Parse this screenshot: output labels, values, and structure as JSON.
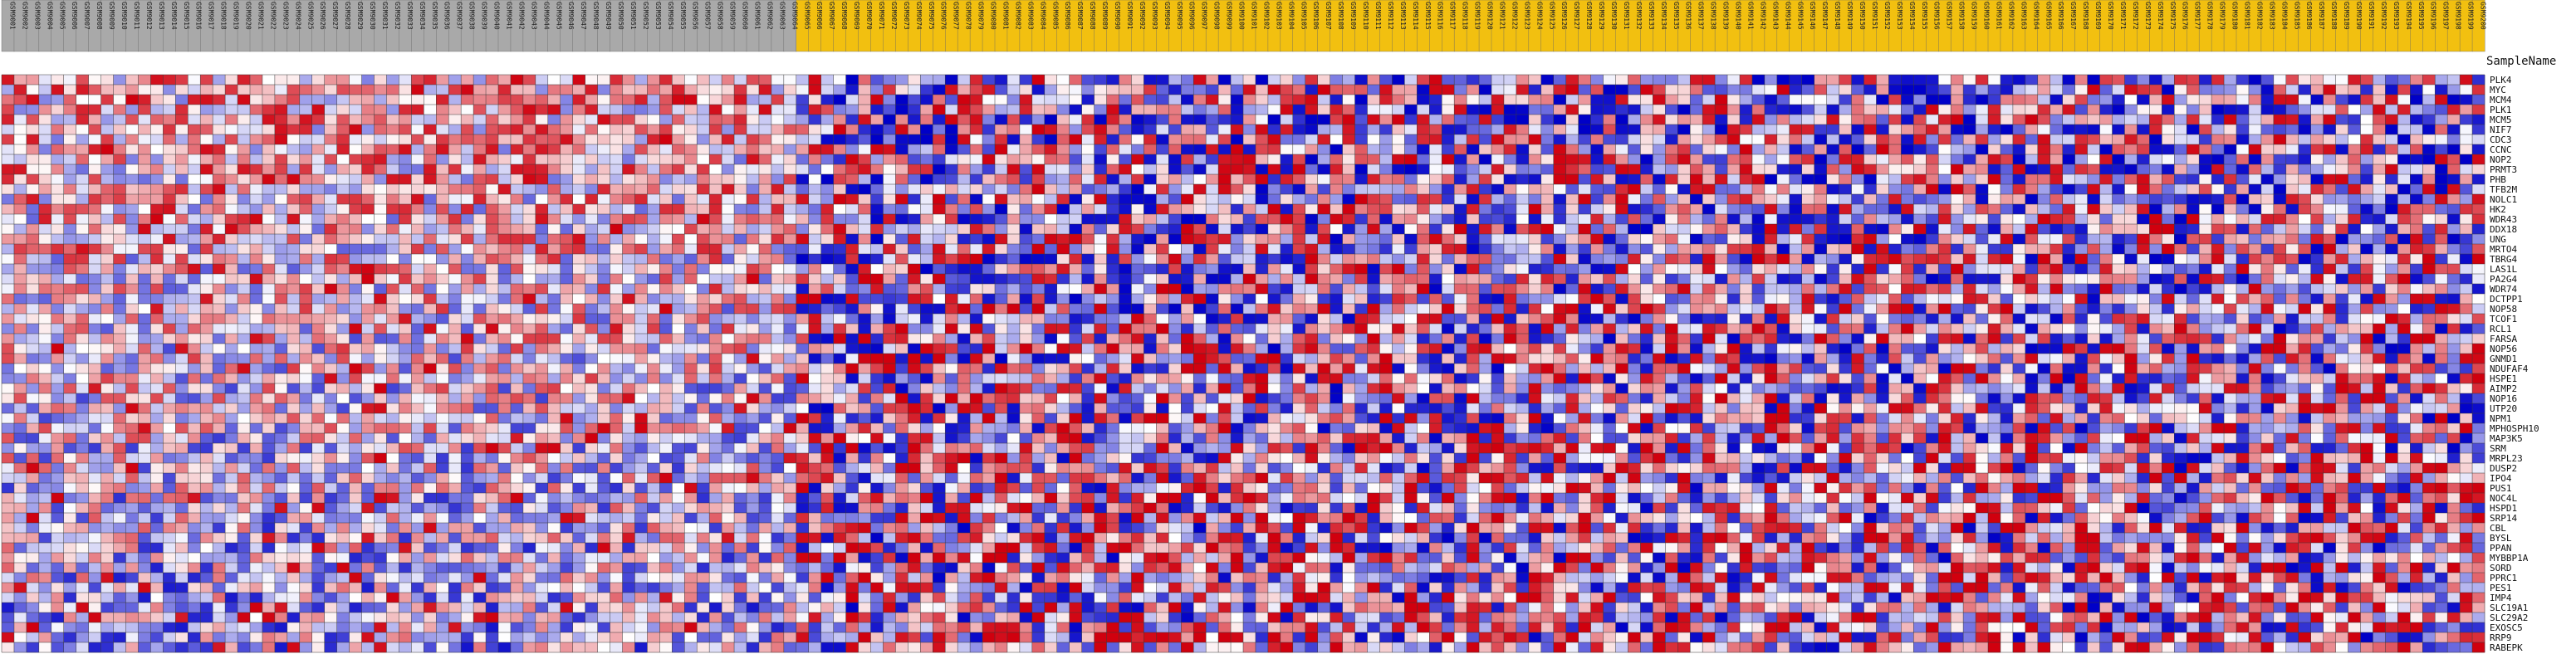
{
  "chart_data": {
    "type": "heatmap",
    "corner_label": "SampleName",
    "class_colors": {
      "class_a": "#a9a9a9",
      "class_b": "#f2c010"
    },
    "color_scale": {
      "low": "#0000c8",
      "mid": "#ffffff",
      "high": "#d0000e"
    },
    "column_count": 200,
    "class_a_count": 64,
    "columns": [
      {
        "name": "GSM9001"
      },
      {
        "name": "GSM9002"
      },
      {
        "name": "GSM9003"
      },
      {
        "name": "GSM9004"
      },
      {
        "name": "GSM9005"
      },
      {
        "name": "GSM9006"
      },
      {
        "name": "GSM9007"
      },
      {
        "name": "GSM9008"
      },
      {
        "name": "GSM9009"
      },
      {
        "name": "GSM9010"
      },
      {
        "name": "GSM9011"
      },
      {
        "name": "GSM9012"
      },
      {
        "name": "GSM9013"
      },
      {
        "name": "GSM9014"
      },
      {
        "name": "GSM9015"
      },
      {
        "name": "GSM9016"
      },
      {
        "name": "GSM9017"
      },
      {
        "name": "GSM9018"
      },
      {
        "name": "GSM9019"
      },
      {
        "name": "GSM9020"
      },
      {
        "name": "GSM9021"
      },
      {
        "name": "GSM9022"
      },
      {
        "name": "GSM9023"
      },
      {
        "name": "GSM9024"
      },
      {
        "name": "GSM9025"
      },
      {
        "name": "GSM9026"
      },
      {
        "name": "GSM9027"
      },
      {
        "name": "GSM9028"
      },
      {
        "name": "GSM9029"
      },
      {
        "name": "GSM9030"
      },
      {
        "name": "GSM9031"
      },
      {
        "name": "GSM9032"
      },
      {
        "name": "GSM9033"
      },
      {
        "name": "GSM9034"
      },
      {
        "name": "GSM9035"
      },
      {
        "name": "GSM9036"
      },
      {
        "name": "GSM9037"
      },
      {
        "name": "GSM9038"
      },
      {
        "name": "GSM9039"
      },
      {
        "name": "GSM9040"
      },
      {
        "name": "GSM9041"
      },
      {
        "name": "GSM9042"
      },
      {
        "name": "GSM9043"
      },
      {
        "name": "GSM9044"
      },
      {
        "name": "GSM9045"
      },
      {
        "name": "GSM9046"
      },
      {
        "name": "GSM9047"
      },
      {
        "name": "GSM9048"
      },
      {
        "name": "GSM9049"
      },
      {
        "name": "GSM9050"
      },
      {
        "name": "GSM9051"
      },
      {
        "name": "GSM9052"
      },
      {
        "name": "GSM9053"
      },
      {
        "name": "GSM9054"
      },
      {
        "name": "GSM9055"
      },
      {
        "name": "GSM9056"
      },
      {
        "name": "GSM9057"
      },
      {
        "name": "GSM9058"
      },
      {
        "name": "GSM9059"
      },
      {
        "name": "GSM9060"
      },
      {
        "name": "GSM9061"
      },
      {
        "name": "GSM9062"
      },
      {
        "name": "GSM9063"
      },
      {
        "name": "GSM9064"
      },
      {
        "name": "GSM9065"
      },
      {
        "name": "GSM9066"
      },
      {
        "name": "GSM9067"
      },
      {
        "name": "GSM9068"
      },
      {
        "name": "GSM9069"
      },
      {
        "name": "GSM9070"
      },
      {
        "name": "GSM9071"
      },
      {
        "name": "GSM9072"
      },
      {
        "name": "GSM9073"
      },
      {
        "name": "GSM9074"
      },
      {
        "name": "GSM9075"
      },
      {
        "name": "GSM9076"
      },
      {
        "name": "GSM9077"
      },
      {
        "name": "GSM9078"
      },
      {
        "name": "GSM9079"
      },
      {
        "name": "GSM9080"
      },
      {
        "name": "GSM9081"
      },
      {
        "name": "GSM9082"
      },
      {
        "name": "GSM9083"
      },
      {
        "name": "GSM9084"
      },
      {
        "name": "GSM9085"
      },
      {
        "name": "GSM9086"
      },
      {
        "name": "GSM9087"
      },
      {
        "name": "GSM9088"
      },
      {
        "name": "GSM9089"
      },
      {
        "name": "GSM9090"
      },
      {
        "name": "GSM9091"
      },
      {
        "name": "GSM9092"
      },
      {
        "name": "GSM9093"
      },
      {
        "name": "GSM9094"
      },
      {
        "name": "GSM9095"
      },
      {
        "name": "GSM9096"
      },
      {
        "name": "GSM9097"
      },
      {
        "name": "GSM9098"
      },
      {
        "name": "GSM9099"
      },
      {
        "name": "GSM9100"
      },
      {
        "name": "GSM9101"
      },
      {
        "name": "GSM9102"
      },
      {
        "name": "GSM9103"
      },
      {
        "name": "GSM9104"
      },
      {
        "name": "GSM9105"
      },
      {
        "name": "GSM9106"
      },
      {
        "name": "GSM9107"
      },
      {
        "name": "GSM9108"
      },
      {
        "name": "GSM9109"
      },
      {
        "name": "GSM9110"
      },
      {
        "name": "GSM9111"
      },
      {
        "name": "GSM9112"
      },
      {
        "name": "GSM9113"
      },
      {
        "name": "GSM9114"
      },
      {
        "name": "GSM9115"
      },
      {
        "name": "GSM9116"
      },
      {
        "name": "GSM9117"
      },
      {
        "name": "GSM9118"
      },
      {
        "name": "GSM9119"
      },
      {
        "name": "GSM9120"
      },
      {
        "name": "GSM9121"
      },
      {
        "name": "GSM9122"
      },
      {
        "name": "GSM9123"
      },
      {
        "name": "GSM9124"
      },
      {
        "name": "GSM9125"
      },
      {
        "name": "GSM9126"
      },
      {
        "name": "GSM9127"
      },
      {
        "name": "GSM9128"
      },
      {
        "name": "GSM9129"
      },
      {
        "name": "GSM9130"
      },
      {
        "name": "GSM9131"
      },
      {
        "name": "GSM9132"
      },
      {
        "name": "GSM9133"
      },
      {
        "name": "GSM9134"
      },
      {
        "name": "GSM9135"
      },
      {
        "name": "GSM9136"
      },
      {
        "name": "GSM9137"
      },
      {
        "name": "GSM9138"
      },
      {
        "name": "GSM9139"
      },
      {
        "name": "GSM9140"
      },
      {
        "name": "GSM9141"
      },
      {
        "name": "GSM9142"
      },
      {
        "name": "GSM9143"
      },
      {
        "name": "GSM9144"
      },
      {
        "name": "GSM9145"
      },
      {
        "name": "GSM9146"
      },
      {
        "name": "GSM9147"
      },
      {
        "name": "GSM9148"
      },
      {
        "name": "GSM9149"
      },
      {
        "name": "GSM9150"
      },
      {
        "name": "GSM9151"
      },
      {
        "name": "GSM9152"
      },
      {
        "name": "GSM9153"
      },
      {
        "name": "GSM9154"
      },
      {
        "name": "GSM9155"
      },
      {
        "name": "GSM9156"
      },
      {
        "name": "GSM9157"
      },
      {
        "name": "GSM9158"
      },
      {
        "name": "GSM9159"
      },
      {
        "name": "GSM9160"
      },
      {
        "name": "GSM9161"
      },
      {
        "name": "GSM9162"
      },
      {
        "name": "GSM9163"
      },
      {
        "name": "GSM9164"
      },
      {
        "name": "GSM9165"
      },
      {
        "name": "GSM9166"
      },
      {
        "name": "GSM9167"
      },
      {
        "name": "GSM9168"
      },
      {
        "name": "GSM9169"
      },
      {
        "name": "GSM9170"
      },
      {
        "name": "GSM9171"
      },
      {
        "name": "GSM9172"
      },
      {
        "name": "GSM9173"
      },
      {
        "name": "GSM9174"
      },
      {
        "name": "GSM9175"
      },
      {
        "name": "GSM9176"
      },
      {
        "name": "GSM9177"
      },
      {
        "name": "GSM9178"
      },
      {
        "name": "GSM9179"
      },
      {
        "name": "GSM9180"
      },
      {
        "name": "GSM9181"
      },
      {
        "name": "GSM9182"
      },
      {
        "name": "GSM9183"
      },
      {
        "name": "GSM9184"
      },
      {
        "name": "GSM9185"
      },
      {
        "name": "GSM9186"
      },
      {
        "name": "GSM9187"
      },
      {
        "name": "GSM9188"
      },
      {
        "name": "GSM9189"
      },
      {
        "name": "GSM9190"
      },
      {
        "name": "GSM9191"
      },
      {
        "name": "GSM9192"
      },
      {
        "name": "GSM9193"
      },
      {
        "name": "GSM9194"
      },
      {
        "name": "GSM9195"
      },
      {
        "name": "GSM9196"
      },
      {
        "name": "GSM9197"
      },
      {
        "name": "GSM9198"
      },
      {
        "name": "GSM9199"
      },
      {
        "name": "GSM9200"
      }
    ],
    "rows": [
      "PLK4",
      "MYC",
      "MCM4",
      "PLK1",
      "MCM5",
      "NIF7",
      "CDC3",
      "CCNC",
      "NOP2",
      "PRMT3",
      "PHB",
      "TFB2M",
      "NOLC1",
      "HK2",
      "WDR43",
      "DDX18",
      "UNG",
      "MRTO4",
      "TBRG4",
      "LAS1L",
      "PA2G4",
      "WDR74",
      "DCTPP1",
      "NOP58",
      "TCOF1",
      "RCL1",
      "FARSA",
      "NOP56",
      "GNMD1",
      "NDUFAF4",
      "HSPE1",
      "AIMP2",
      "NOP16",
      "UTP20",
      "NPM1",
      "MPHOSPH10",
      "MAP3K5",
      "SRM",
      "MRPL23",
      "DUSP2",
      "IPO4",
      "PUS1",
      "NOC4L",
      "HSPD1",
      "SRP14",
      "CBL",
      "BYSL",
      "PPAN",
      "MYBBP1A",
      "SORD",
      "PPRC1",
      "PES1",
      "IMP4",
      "SLC19A1",
      "SLC29A2",
      "EXOSC5",
      "RRP9",
      "RABEPK"
    ]
  }
}
